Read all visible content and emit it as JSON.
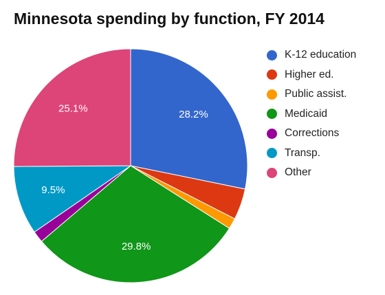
{
  "chart_data": {
    "type": "pie",
    "title": "Minnesota spending by function, FY 2014",
    "legend_position": "right",
    "slices": [
      {
        "name": "K-12 education",
        "value": 28.2,
        "label": "28.2%",
        "color": "#3366cc"
      },
      {
        "name": "Higher ed.",
        "value": 4.3,
        "label": "",
        "color": "#dc3912"
      },
      {
        "name": "Public assist.",
        "value": 1.5,
        "label": "",
        "color": "#ff9900"
      },
      {
        "name": "Medicaid",
        "value": 29.8,
        "label": "29.8%",
        "color": "#109618"
      },
      {
        "name": "Corrections",
        "value": 1.6,
        "label": "",
        "color": "#990099"
      },
      {
        "name": "Transp.",
        "value": 9.5,
        "label": "9.5%",
        "color": "#0099c6"
      },
      {
        "name": "Other",
        "value": 25.1,
        "label": "25.1%",
        "color": "#dd4477"
      }
    ]
  }
}
